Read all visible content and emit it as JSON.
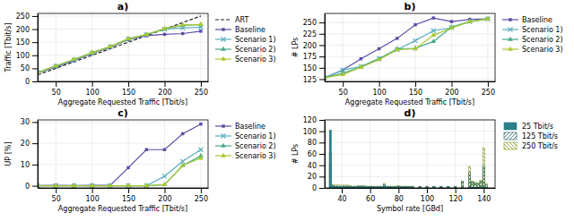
{
  "chart_data": [
    {
      "type": "line",
      "title": "a)",
      "xlabel": "Aggregate Requested Traffic [Tbit/s]",
      "ylabel": "Traffic [Tbit/s]",
      "x": [
        25,
        50,
        75,
        100,
        125,
        150,
        175,
        200,
        225,
        250
      ],
      "xlim": [
        25,
        260
      ],
      "xticks": [
        50,
        100,
        150,
        200,
        250
      ],
      "ylim": [
        0,
        260
      ],
      "yticks": [
        0,
        50,
        100,
        150,
        200,
        250
      ],
      "grid": true,
      "legend": "right",
      "series": [
        {
          "name": "ART",
          "color": "#222222",
          "line_style": "dashed",
          "values": [
            25,
            50,
            75,
            100,
            125,
            150,
            175,
            200,
            225,
            250
          ]
        },
        {
          "name": "Baseline",
          "color": "#5b4ea8",
          "line_style": "solid",
          "marker": "square",
          "values": [
            33,
            55,
            80,
            107,
            130,
            160,
            175,
            180,
            183,
            192
          ]
        },
        {
          "name": "Scenario 1)",
          "color": "#5baebe",
          "line_style": "solid",
          "marker": "x",
          "values": [
            34,
            58,
            82,
            108,
            132,
            162,
            178,
            200,
            205,
            207
          ]
        },
        {
          "name": "Scenario 2)",
          "color": "#47a882",
          "line_style": "solid",
          "marker": "triangle",
          "values": [
            34,
            59,
            84,
            110,
            133,
            163,
            179,
            200,
            215,
            217
          ]
        },
        {
          "name": "Scenario 3)",
          "color": "#a8c832",
          "line_style": "solid",
          "marker": "triangle",
          "values": [
            34,
            59,
            84,
            110,
            133,
            163,
            179,
            202,
            216,
            218
          ]
        }
      ]
    },
    {
      "type": "line",
      "title": "b)",
      "xlabel": "Aggregate Requested Traffic [Tbit/s]",
      "ylabel": "# LPs",
      "x": [
        25,
        50,
        75,
        100,
        125,
        150,
        175,
        200,
        225,
        250
      ],
      "xlim": [
        25,
        260
      ],
      "xticks": [
        50,
        100,
        150,
        200,
        250
      ],
      "ylim": [
        120,
        270
      ],
      "yticks": [
        125,
        150,
        175,
        200,
        225,
        250
      ],
      "grid": true,
      "legend": "right",
      "series": [
        {
          "name": "Baseline",
          "color": "#5b4ea8",
          "line_style": "solid",
          "marker": "square",
          "values": [
            128,
            145,
            170,
            192,
            215,
            245,
            260,
            252,
            257,
            258
          ]
        },
        {
          "name": "Scenario 1)",
          "color": "#5baebe",
          "line_style": "solid",
          "marker": "x",
          "values": [
            128,
            145,
            153,
            170,
            190,
            210,
            232,
            238,
            252,
            258
          ]
        },
        {
          "name": "Scenario 2)",
          "color": "#47a882",
          "line_style": "solid",
          "marker": "triangle",
          "values": [
            128,
            138,
            152,
            170,
            192,
            193,
            208,
            240,
            252,
            258
          ]
        },
        {
          "name": "Scenario 3)",
          "color": "#a8c832",
          "line_style": "solid",
          "marker": "triangle",
          "values": [
            128,
            135,
            151,
            168,
            190,
            192,
            222,
            238,
            252,
            258
          ]
        }
      ]
    },
    {
      "type": "line",
      "title": "c)",
      "xlabel": "Aggregate Requested Traffic [Tbit/s]",
      "ylabel": "UP [%]",
      "x": [
        25,
        50,
        75,
        100,
        125,
        150,
        175,
        200,
        225,
        250
      ],
      "xlim": [
        25,
        260
      ],
      "xticks": [
        50,
        100,
        150,
        200,
        250
      ],
      "ylim": [
        -1,
        31
      ],
      "yticks": [
        0,
        10,
        20,
        30
      ],
      "grid": true,
      "legend": "right",
      "series": [
        {
          "name": "Baseline",
          "color": "#5b4ea8",
          "line_style": "solid",
          "marker": "square",
          "values": [
            0.1,
            0.2,
            0.1,
            0.2,
            0.2,
            8.5,
            17.0,
            17.0,
            24.5,
            29.0
          ]
        },
        {
          "name": "Scenario 1)",
          "color": "#5baebe",
          "line_style": "solid",
          "marker": "x",
          "values": [
            0.0,
            0.0,
            0.0,
            0.0,
            0.0,
            0.0,
            0.0,
            4.5,
            11.5,
            17.0
          ]
        },
        {
          "name": "Scenario 2)",
          "color": "#47a882",
          "line_style": "solid",
          "marker": "triangle",
          "values": [
            0.0,
            0.0,
            0.0,
            0.0,
            0.0,
            0.0,
            0.0,
            0.5,
            9.5,
            14.0
          ]
        },
        {
          "name": "Scenario 3)",
          "color": "#a8c832",
          "line_style": "solid",
          "marker": "triangle",
          "values": [
            0.0,
            0.0,
            0.0,
            0.0,
            0.0,
            0.0,
            0.0,
            0.5,
            9.5,
            13.0
          ]
        }
      ]
    },
    {
      "type": "bar",
      "title": "d)",
      "xlabel": "Symbol rate [GBd]",
      "ylabel": "# LPs",
      "x": [
        32,
        34,
        36,
        38,
        40,
        42,
        44,
        46,
        48,
        50,
        52,
        54,
        56,
        58,
        60,
        62,
        64,
        66,
        68,
        70,
        72,
        74,
        76,
        78,
        80,
        82,
        84,
        86,
        88,
        90,
        95,
        100,
        105,
        110,
        115,
        120,
        125,
        130,
        132,
        134,
        136,
        138,
        140,
        142
      ],
      "xlim": [
        28,
        148
      ],
      "xticks": [
        40,
        60,
        80,
        100,
        120,
        140
      ],
      "ylim": [
        0,
        120
      ],
      "yticks": [
        0,
        20,
        40,
        60,
        80,
        100,
        120
      ],
      "grid": true,
      "legend": "right",
      "stacked": false,
      "series": [
        {
          "name": "25 Tbit/s",
          "color": "#2a7f8a",
          "values": [
            102,
            2,
            2,
            2,
            2,
            2,
            2,
            2,
            1,
            1,
            2,
            2,
            2,
            2,
            1,
            1,
            1,
            1,
            1,
            4,
            1,
            1,
            1,
            1,
            2,
            1,
            1,
            1,
            1,
            1,
            1,
            1,
            1,
            1,
            1,
            1,
            1,
            1,
            1,
            1,
            1,
            1,
            1,
            1
          ]
        },
        {
          "name": "125 Tbit/s",
          "color": "#1a5a5a",
          "values": [
            62,
            4,
            3,
            3,
            3,
            3,
            3,
            2,
            2,
            2,
            3,
            3,
            3,
            2,
            2,
            2,
            2,
            2,
            2,
            6,
            2,
            2,
            2,
            2,
            3,
            2,
            2,
            2,
            2,
            2,
            2,
            2,
            2,
            2,
            2,
            2,
            10,
            27,
            10,
            8,
            7,
            12,
            38,
            5
          ]
        },
        {
          "name": "250 Tbit/s",
          "color": "#7a9010",
          "values": [
            42,
            6,
            5,
            5,
            5,
            5,
            5,
            4,
            3,
            3,
            4,
            4,
            4,
            3,
            3,
            3,
            3,
            3,
            3,
            8,
            3,
            3,
            3,
            3,
            4,
            3,
            3,
            3,
            3,
            3,
            3,
            3,
            3,
            3,
            3,
            3,
            12,
            38,
            12,
            10,
            9,
            14,
            70,
            8
          ]
        }
      ]
    }
  ]
}
